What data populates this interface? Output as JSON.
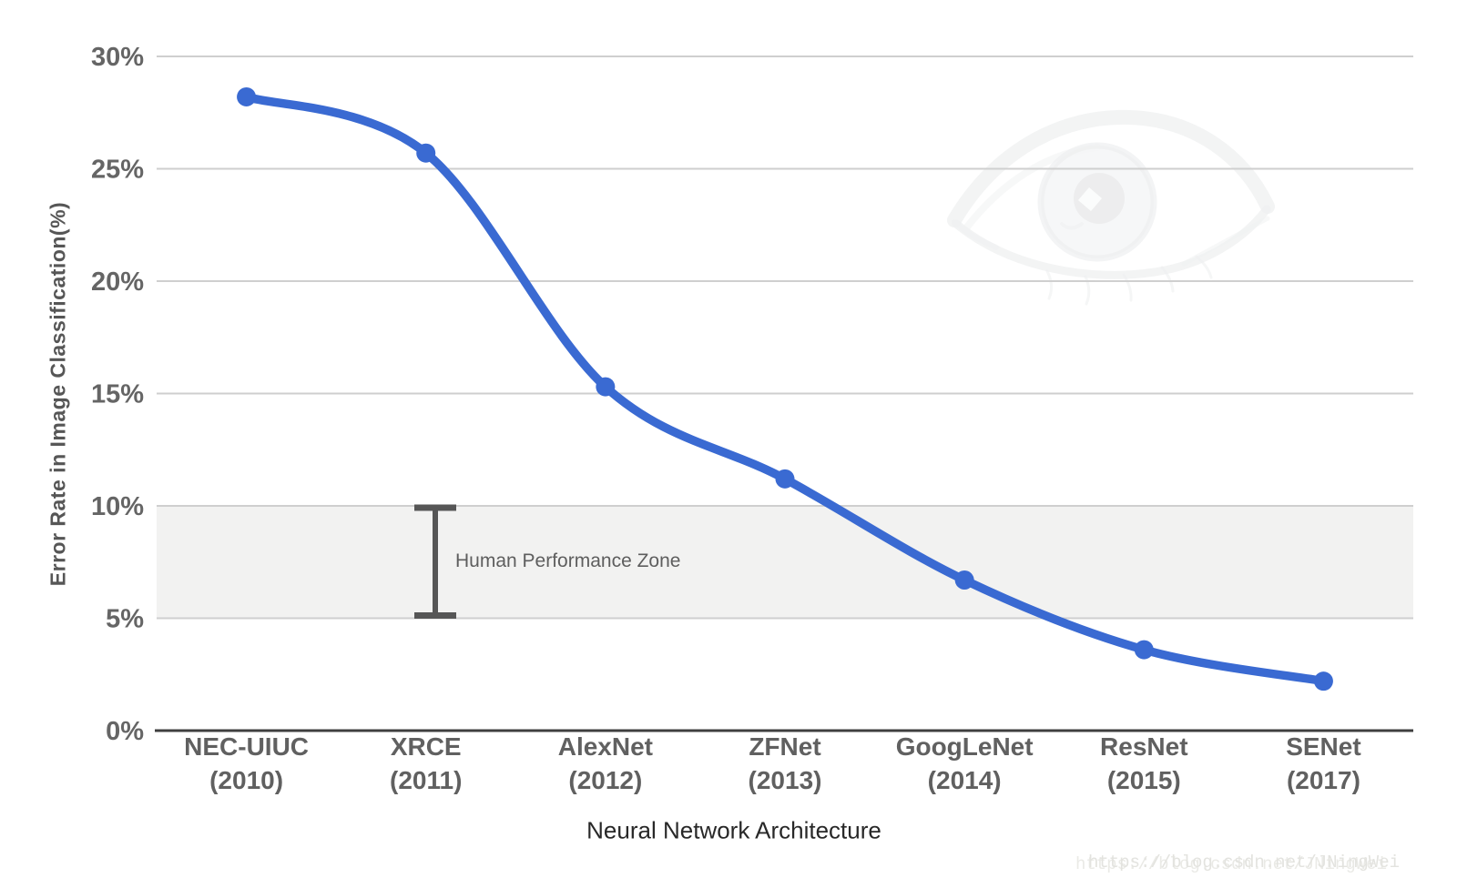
{
  "chart_data": {
    "type": "line",
    "title": "",
    "xlabel": "Neural Network Architecture",
    "ylabel": "Error Rate in Image Classification(%)",
    "categories": [
      {
        "name": "NEC-UIUC",
        "year": "(2010)"
      },
      {
        "name": "XRCE",
        "year": "(2011)"
      },
      {
        "name": "AlexNet",
        "year": "(2012)"
      },
      {
        "name": "ZFNet",
        "year": "(2013)"
      },
      {
        "name": "GoogLeNet",
        "year": "(2014)"
      },
      {
        "name": "ResNet",
        "year": "(2015)"
      },
      {
        "name": "SENet",
        "year": "(2017)"
      }
    ],
    "series": [
      {
        "name": "Error Rate in Image Classification",
        "values": [
          28.2,
          25.7,
          15.3,
          11.2,
          6.7,
          3.6,
          2.2
        ]
      }
    ],
    "ylim": [
      0,
      30
    ],
    "yticks": [
      0,
      5,
      10,
      15,
      20,
      25,
      30
    ],
    "ytick_suffix": "%",
    "grid": true,
    "legend_position": "none",
    "annotations": {
      "human_zone": {
        "label": "Human Performance Zone",
        "from_percent": 5,
        "to_percent": 10
      }
    }
  },
  "icons": {
    "eye_watermark": "faint-human-eye-image"
  },
  "watermark": {
    "text": "https://blog.csdn.net/JNingWei"
  },
  "colors": {
    "line": "#3a6ad2",
    "point": "#3a6ad2",
    "grid": "#cfcfcf",
    "axis": "#3f3f3f",
    "band": "#f2f2f1",
    "tick_label": "#656565",
    "category_label": "#606060",
    "whisker": "#565656"
  }
}
